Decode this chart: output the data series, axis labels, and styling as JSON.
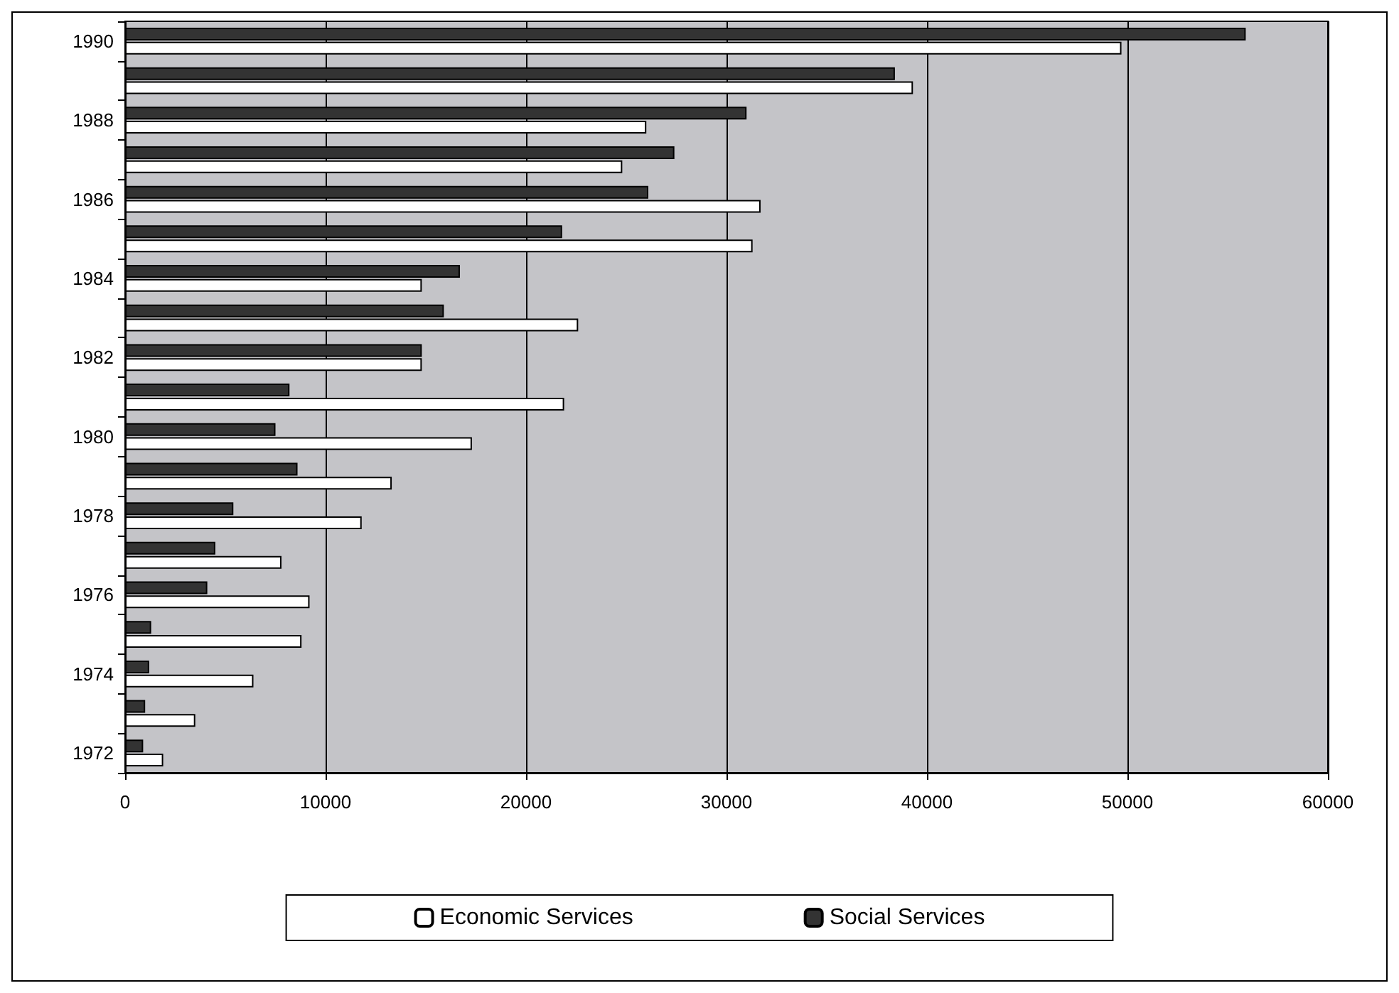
{
  "chart_data": {
    "type": "bar",
    "orientation": "horizontal",
    "categories": [
      "1990",
      null,
      "1988",
      null,
      "1986",
      null,
      "1984",
      null,
      "1982",
      null,
      "1980",
      null,
      "1978",
      null,
      "1976",
      null,
      "1974",
      null,
      "1972"
    ],
    "series": [
      {
        "name": "Economic Services",
        "color": "#ffffff",
        "values": [
          49700,
          39300,
          26000,
          24800,
          31700,
          31300,
          14800,
          22600,
          14800,
          21900,
          17300,
          13300,
          11800,
          7800,
          9200,
          8800,
          6400,
          3500,
          1900
        ]
      },
      {
        "name": "Social Services",
        "color": "#333333",
        "values": [
          55900,
          38400,
          31000,
          27400,
          26100,
          21800,
          16700,
          15900,
          14800,
          8200,
          7500,
          8600,
          5400,
          4500,
          4100,
          1300,
          1200,
          1000,
          900
        ]
      }
    ],
    "xlim": [
      0,
      60000
    ],
    "xticks": [
      0,
      10000,
      20000,
      30000,
      40000,
      50000,
      60000
    ],
    "grid": "x",
    "legend": "bottom"
  }
}
